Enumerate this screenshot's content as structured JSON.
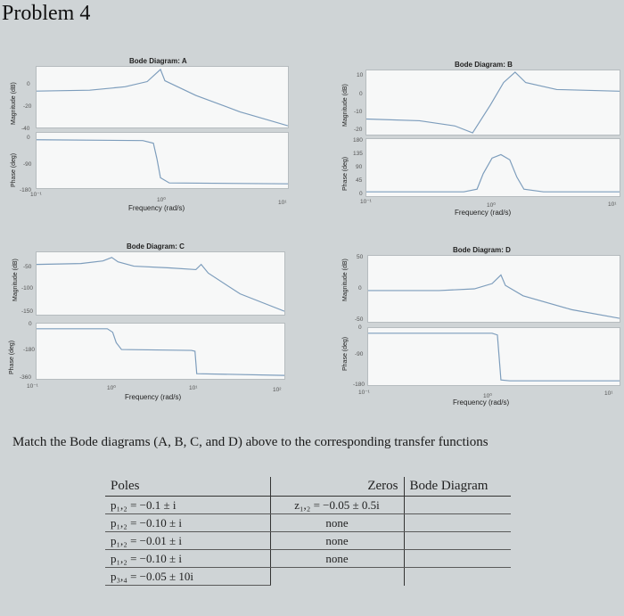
{
  "page": {
    "title": "Problem 4"
  },
  "diagrams": [
    {
      "title": "Bode Diagram: A",
      "xlabel": "Frequency  (rad/s)",
      "mag_label": "Magnitude (dB)",
      "phase_label": "Phase (deg)",
      "mag_ticks": [
        "0",
        "-20",
        "-40"
      ],
      "phase_ticks": [
        "0",
        "-90",
        "-180"
      ],
      "x_ticks": [
        "10⁻¹",
        "10⁰",
        "10¹"
      ]
    },
    {
      "title": "Bode Diagram: B",
      "xlabel": "Frequency  (rad/s)",
      "mag_label": "Magnitude (dB)",
      "phase_label": "Phase (deg)",
      "mag_ticks": [
        "10",
        "0",
        "-10",
        "-20"
      ],
      "phase_ticks": [
        "180",
        "135",
        "90",
        "45",
        "0"
      ],
      "x_ticks": [
        "10⁻¹",
        "10⁰",
        "10¹"
      ]
    },
    {
      "title": "Bode Diagram: C",
      "xlabel": "Frequency  (rad/s)",
      "mag_label": "Magnitude (dB)",
      "phase_label": "Phase (deg)",
      "mag_ticks": [
        "-50",
        "-100",
        "-150"
      ],
      "phase_ticks": [
        "0",
        "-180",
        "-360"
      ],
      "x_ticks": [
        "10⁻¹",
        "10⁰",
        "10¹",
        "10²"
      ]
    },
    {
      "title": "Bode Diagram: D",
      "xlabel": "Frequency  (rad/s)",
      "mag_label": "Magnitude (dB)",
      "phase_label": "Phase (deg)",
      "mag_ticks": [
        "50",
        "0",
        "-50"
      ],
      "phase_ticks": [
        "0",
        "-90",
        "-180"
      ],
      "x_ticks": [
        "10⁻¹",
        "10⁰",
        "10¹"
      ]
    }
  ],
  "question": "Match the Bode diagrams (A, B, C, and D) above to the corresponding transfer functions",
  "table": {
    "headers": {
      "poles": "Poles",
      "zeros": "Zeros",
      "bode": "Bode Diagram"
    },
    "rows": [
      {
        "poles": "p₁,₂ = −0.1 ± i",
        "zeros": "z₁,₂ = −0.05 ± 0.5i",
        "bode": ""
      },
      {
        "poles": "p₁,₂ = −0.10 ± i",
        "zeros": "none",
        "bode": ""
      },
      {
        "poles": "p₁,₂ = −0.01 ± i",
        "zeros": "none",
        "bode": ""
      },
      {
        "poles": "p₁,₂ = −0.10 ± i",
        "zeros": "none",
        "bode": ""
      },
      {
        "poles": "p₃,₄ = −0.05 ± 10i",
        "zeros": "",
        "bode": ""
      }
    ]
  },
  "colors": {
    "curve": "#7d9dbc",
    "panel": "#f7f8f8",
    "page": "#cfd4d6"
  }
}
